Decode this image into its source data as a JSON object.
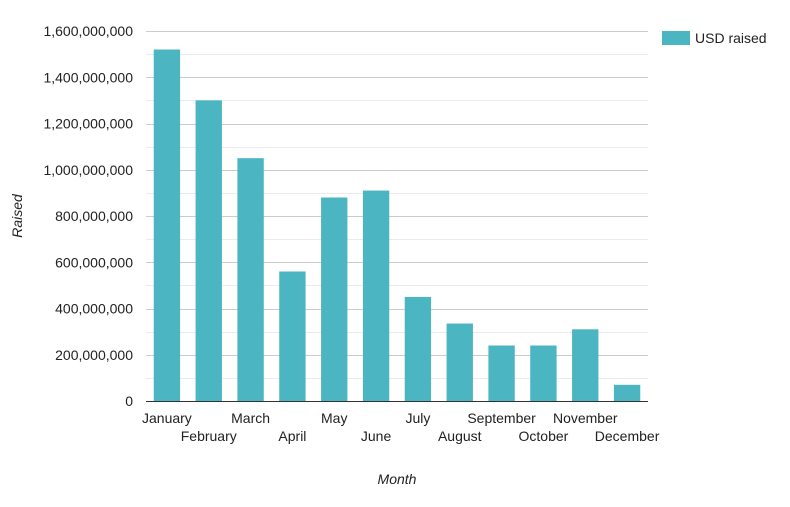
{
  "chart_data": {
    "type": "bar",
    "title": "",
    "xlabel": "Month",
    "ylabel": "Raised",
    "categories": [
      "January",
      "February",
      "March",
      "April",
      "May",
      "June",
      "July",
      "August",
      "September",
      "October",
      "November",
      "December"
    ],
    "series": [
      {
        "name": "USD raised",
        "color": "#4bb5c1",
        "values": [
          1520000000,
          1300000000,
          1050000000,
          560000000,
          880000000,
          910000000,
          450000000,
          335000000,
          240000000,
          240000000,
          310000000,
          70000000
        ]
      }
    ],
    "ylim": [
      0,
      1600000000
    ],
    "yticks": [
      0,
      200000000,
      400000000,
      600000000,
      800000000,
      1000000000,
      1200000000,
      1400000000,
      1600000000
    ],
    "ytick_labels": [
      "0",
      "200,000,000",
      "400,000,000",
      "600,000,000",
      "800,000,000",
      "1,000,000,000",
      "1,200,000,000",
      "1,400,000,000",
      "1,600,000,000"
    ],
    "grid": true,
    "legend_position": "right"
  }
}
